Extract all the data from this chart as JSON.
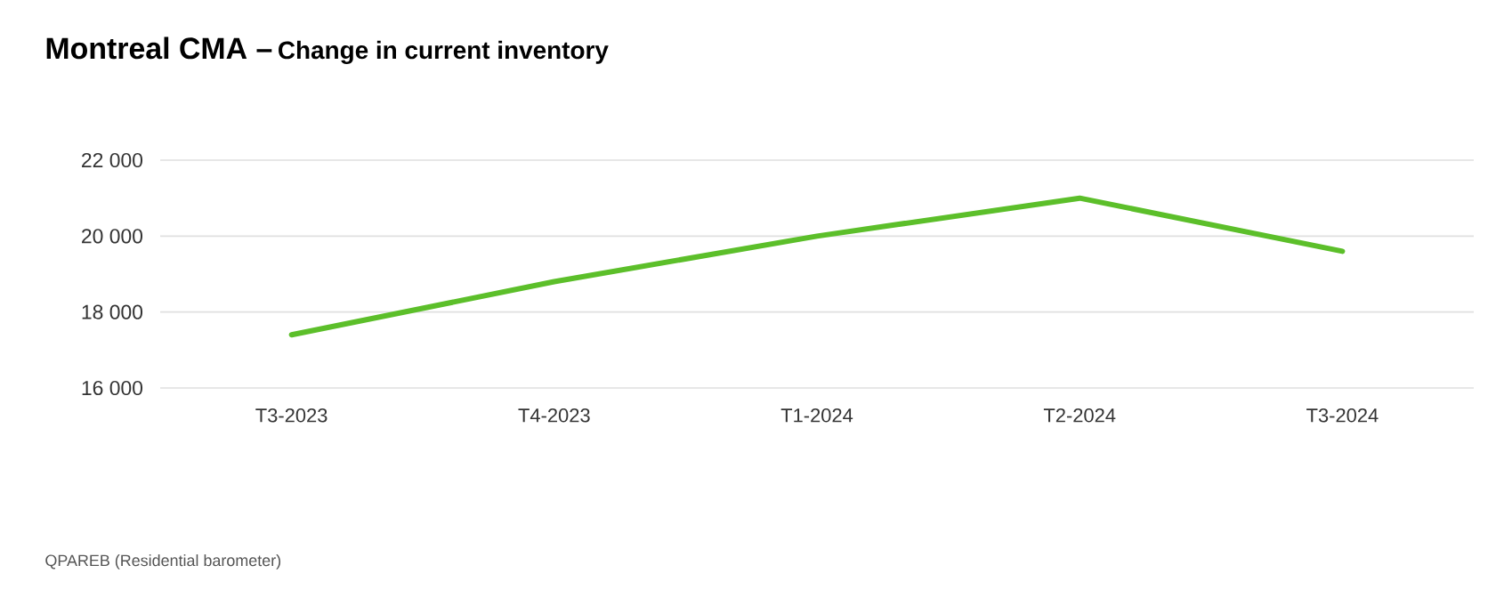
{
  "chart_data": {
    "type": "line",
    "title": "Montreal CMA –",
    "subtitle": "Change in current inventory",
    "categories": [
      "T3-2023",
      "T4-2023",
      "T1-2024",
      "T2-2024",
      "T3-2024"
    ],
    "series": [
      {
        "color": "#5cbf2a",
        "values": [
          17400,
          18800,
          20000,
          21000,
          19600
        ]
      }
    ],
    "ylim": [
      16000,
      22000
    ],
    "yticks": [
      {
        "value": 16000,
        "label": "16 000"
      },
      {
        "value": 18000,
        "label": "18 000"
      },
      {
        "value": 20000,
        "label": "20 000"
      },
      {
        "value": 22000,
        "label": "22 000"
      }
    ],
    "grid": "y",
    "marker": "none",
    "line_style": "solid",
    "annotations": [
      "QPAREB (Residential barometer)"
    ]
  }
}
